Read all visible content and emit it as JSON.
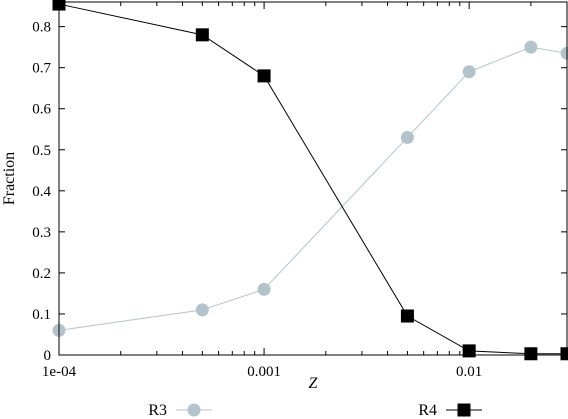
{
  "chart_data": {
    "type": "line",
    "xlabel": "Z",
    "ylabel": "Fraction",
    "xscale": "log",
    "xlim": [
      0.0001,
      0.03
    ],
    "ylim": [
      0,
      0.86
    ],
    "x_ticks": [
      {
        "value": 0.0001,
        "label": "1e-04"
      },
      {
        "value": 0.001,
        "label": "0.001"
      },
      {
        "value": 0.01,
        "label": "0.01"
      }
    ],
    "y_ticks": [
      {
        "value": 0,
        "label": "0"
      },
      {
        "value": 0.1,
        "label": "0.1"
      },
      {
        "value": 0.2,
        "label": "0.2"
      },
      {
        "value": 0.3,
        "label": "0.3"
      },
      {
        "value": 0.4,
        "label": "0.4"
      },
      {
        "value": 0.5,
        "label": "0.5"
      },
      {
        "value": 0.6,
        "label": "0.6"
      },
      {
        "value": 0.7,
        "label": "0.7"
      },
      {
        "value": 0.8,
        "label": "0.8"
      }
    ],
    "grid": false,
    "legend_position": "bottom",
    "series": [
      {
        "name": "R3",
        "color": "#b3c3cc",
        "marker": "circle",
        "x": [
          0.0001,
          0.0005,
          0.001,
          0.005,
          0.01,
          0.02,
          0.03
        ],
        "y": [
          0.06,
          0.11,
          0.16,
          0.53,
          0.69,
          0.75,
          0.735
        ]
      },
      {
        "name": "R4",
        "color": "#000000",
        "marker": "square",
        "x": [
          0.0001,
          0.0005,
          0.001,
          0.005,
          0.01,
          0.02,
          0.03
        ],
        "y": [
          0.855,
          0.78,
          0.68,
          0.095,
          0.01,
          0.003,
          0.003
        ]
      }
    ]
  }
}
